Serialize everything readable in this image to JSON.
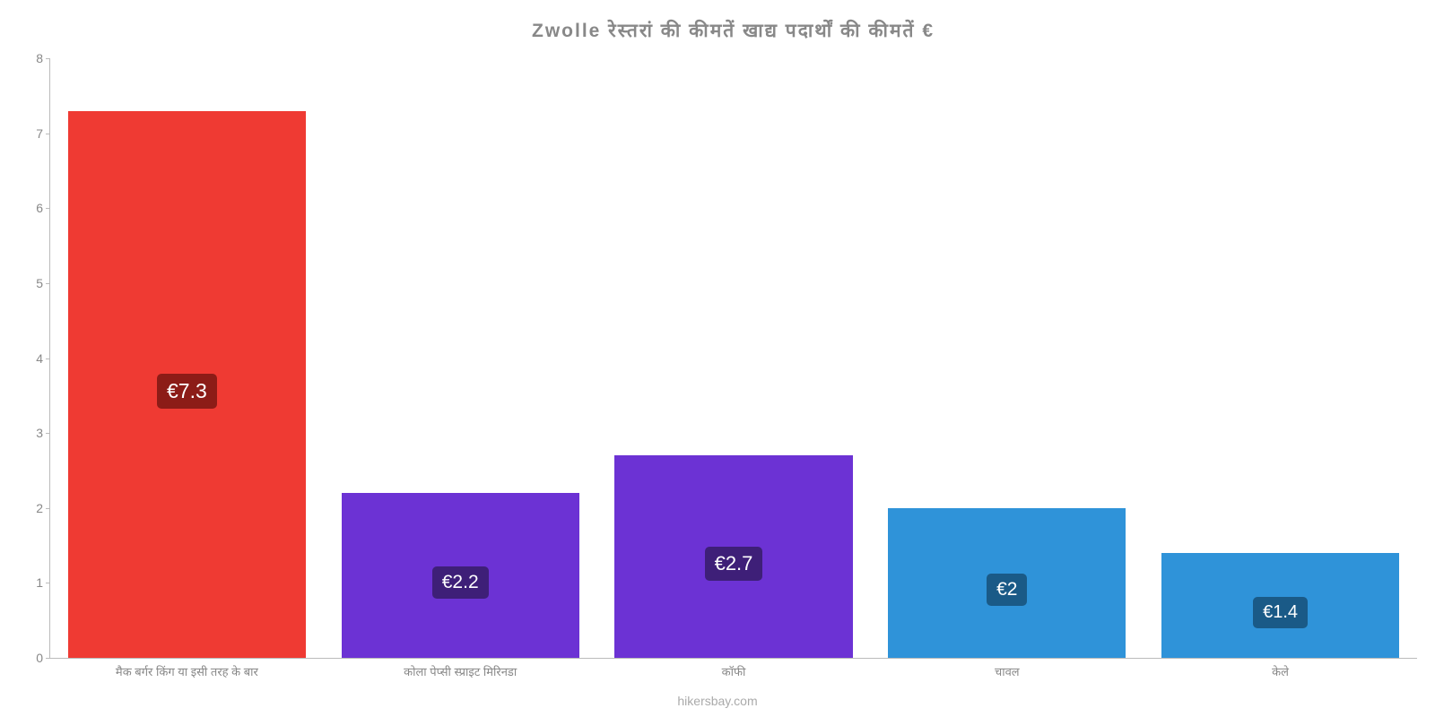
{
  "chart": {
    "type": "bar",
    "title": "Zwolle रेस्तरां   की   कीमतें   खाद्य   पदार्थों   की   कीमतें   €",
    "title_fontsize": 21,
    "title_color": "#888888",
    "background_color": "#ffffff",
    "axis_color": "#bbbbbb",
    "ylim": [
      0,
      8
    ],
    "ytick_step": 1,
    "ytick_color": "#888888",
    "ytick_fontsize": 14,
    "category_label_color": "#888888",
    "category_label_fontsize": 13,
    "bar_width": 0.87,
    "footer": "hikersbay.com",
    "footer_color": "#aaaaaa",
    "bars": [
      {
        "category": "मैक बर्गर किंग या इसी तरह के बार",
        "value": 7.3,
        "label": "€7.3",
        "fill_color": "#ef3a33",
        "badge_bg": "#8c1c17",
        "badge_fontsize": 23
      },
      {
        "category": "कोला पेप्सी स्प्राइट मिरिनडा",
        "value": 2.2,
        "label": "€2.2",
        "fill_color": "#6c32d4",
        "badge_bg": "#3e1f78",
        "badge_fontsize": 21
      },
      {
        "category": "कॉफी",
        "value": 2.7,
        "label": "€2.7",
        "fill_color": "#6c32d4",
        "badge_bg": "#3e1f78",
        "badge_fontsize": 22
      },
      {
        "category": "चावल",
        "value": 2.0,
        "label": "€2",
        "fill_color": "#2f93d9",
        "badge_bg": "#1a5a87",
        "badge_fontsize": 21
      },
      {
        "category": "केले",
        "value": 1.4,
        "label": "€1.4",
        "fill_color": "#2f93d9",
        "badge_bg": "#1a5a87",
        "badge_fontsize": 20
      }
    ]
  }
}
